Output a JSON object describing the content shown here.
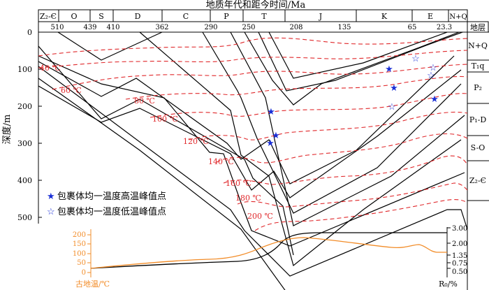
{
  "figure": {
    "title": "地质年代和距今时间/Ma",
    "y_axis_label": "深度/m",
    "strata_header": "地层"
  },
  "periods": [
    "Z₂-Є",
    "O",
    "S",
    "D",
    "C",
    "P",
    "T",
    "J",
    "K",
    "E",
    "N+Q"
  ],
  "ages": [
    "510",
    "439",
    "410",
    "362",
    "290",
    "250",
    "208",
    "135",
    "65",
    "23.3"
  ],
  "depth_ticks": [
    "0",
    "100",
    "200",
    "300",
    "400",
    "500"
  ],
  "strata": [
    "N+Q",
    "T₁q",
    "P₂",
    "P₁-D",
    "S-O",
    "Z₂-Є"
  ],
  "isotherms": [
    "40 ℃",
    "60 ℃",
    "80 ℃",
    "100 ℃",
    "120 ℃",
    "140 ℃",
    "160 ℃",
    "180 ℃",
    "200 ℃"
  ],
  "legend": {
    "high": "包裹体均一温度高温峰值点",
    "low": "包裹体均一温度低温峰值点"
  },
  "sub_panel": {
    "left_axis_label": "古地温/℃",
    "left_ticks": [
      "0",
      "50",
      "100",
      "150",
      "200"
    ],
    "right_axis_label": "R₀/%",
    "right_ticks": [
      "3.00",
      "2.00",
      "1.35",
      "0.75",
      "0.50"
    ],
    "colors": {
      "temperature": "#f28c28",
      "ro": "#000000"
    }
  },
  "colors": {
    "isotherm": "#e0282b",
    "burial": "#000000",
    "marker": "#1a2fd6"
  }
}
